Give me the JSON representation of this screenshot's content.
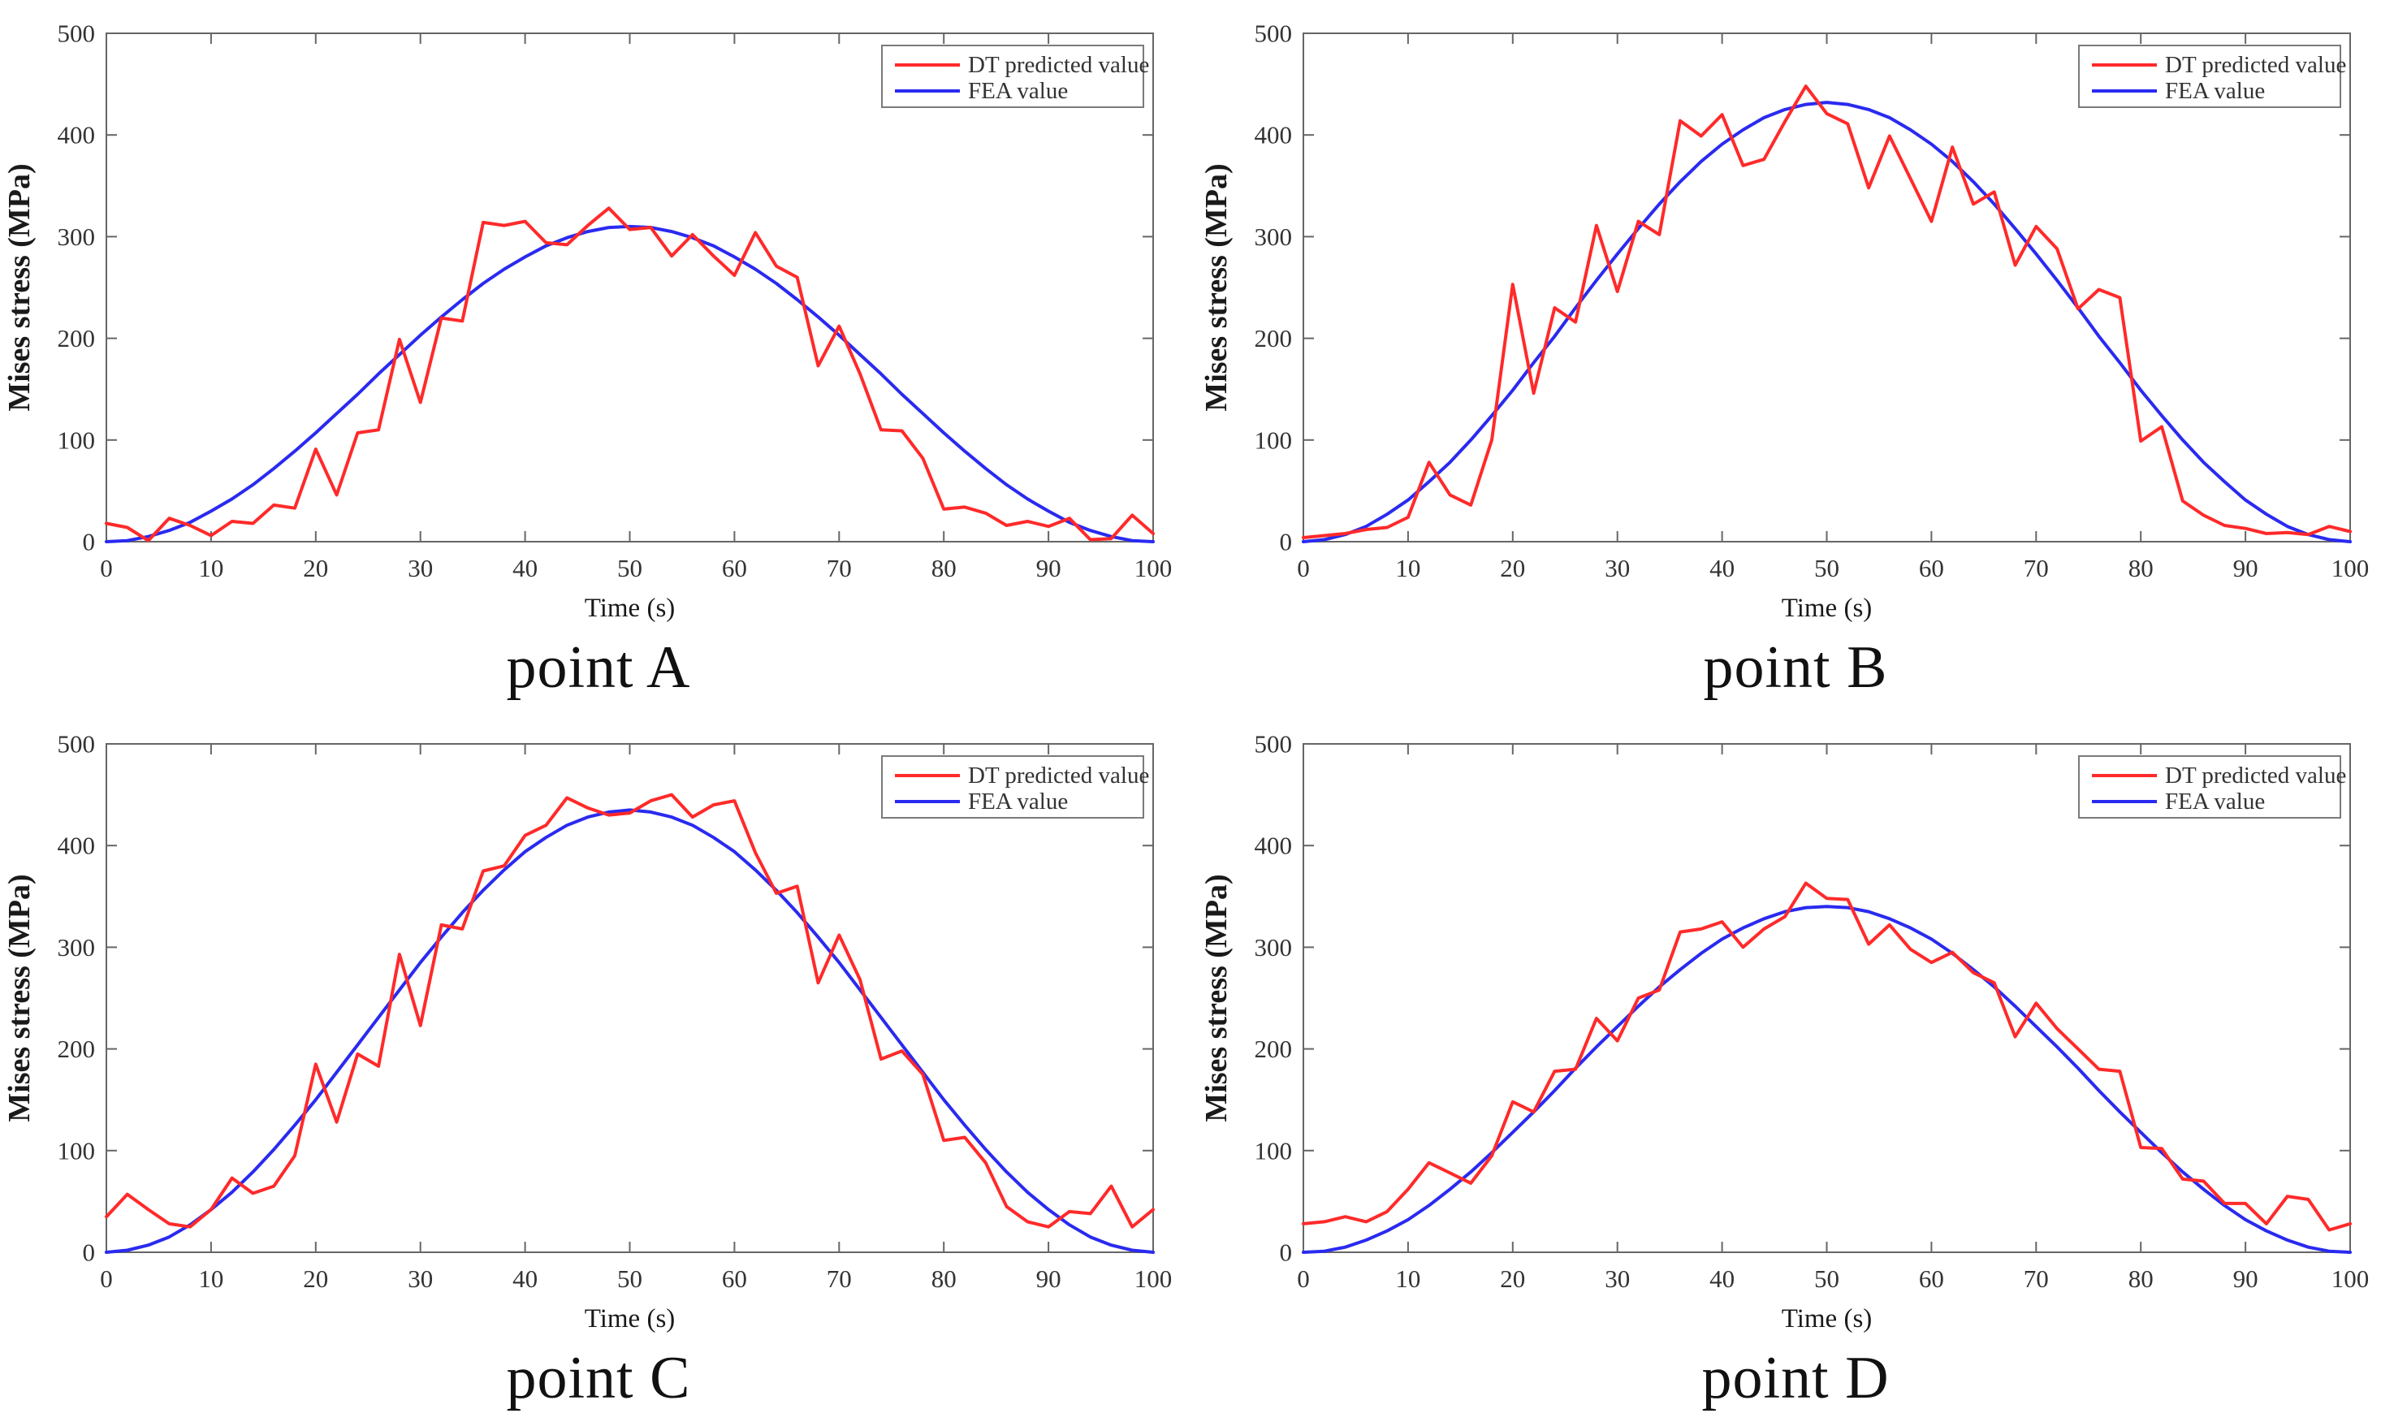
{
  "page": {
    "background": "#ffffff"
  },
  "styles": {
    "dt_color": "#ff2a2a",
    "fea_color": "#2a2af0",
    "frame_color": "#666666",
    "tick_text_color": "#333333",
    "label_text_color": "#1a1a1a",
    "legend_border_color": "#7a7a7a",
    "legend_background": "#ffffff"
  },
  "axes": {
    "xlabel": "Time (s)",
    "ylabel": "Mises stress (MPa)",
    "xlim": [
      0,
      100
    ],
    "ylim": [
      0,
      500
    ],
    "xticks": [
      0,
      10,
      20,
      30,
      40,
      50,
      60,
      70,
      80,
      90,
      100
    ],
    "yticks": [
      0,
      100,
      200,
      300,
      400,
      500
    ],
    "grid": false,
    "legend_position": "top-right"
  },
  "chart_data": [
    {
      "type": "line",
      "caption": "point A",
      "x": [
        0,
        2,
        4,
        6,
        8,
        10,
        12,
        14,
        16,
        18,
        20,
        22,
        24,
        26,
        28,
        30,
        32,
        34,
        36,
        38,
        40,
        42,
        44,
        46,
        48,
        50,
        52,
        54,
        56,
        58,
        60,
        62,
        64,
        66,
        68,
        70,
        72,
        74,
        76,
        78,
        80,
        82,
        84,
        86,
        88,
        90,
        92,
        94,
        96,
        98,
        100
      ],
      "series": [
        {
          "name": "DT predicted value",
          "color_key": "dt_color",
          "values": [
            18,
            14,
            1,
            23,
            16,
            6,
            20,
            18,
            36,
            33,
            91,
            46,
            107,
            110,
            199,
            137,
            220,
            217,
            314,
            311,
            315,
            294,
            292,
            311,
            328,
            307,
            309,
            281,
            302,
            281,
            262,
            304,
            271,
            260,
            173,
            212,
            165,
            110,
            109,
            82,
            32,
            34,
            28,
            16,
            20,
            15,
            23,
            2,
            3,
            26,
            8
          ]
        },
        {
          "name": "FEA value",
          "color_key": "fea_color",
          "values": [
            0,
            1,
            5,
            11,
            19,
            30,
            42,
            56,
            72,
            89,
            107,
            126,
            145,
            165,
            184,
            203,
            221,
            238,
            254,
            268,
            280,
            291,
            299,
            305,
            309,
            310,
            309,
            305,
            299,
            291,
            280,
            268,
            254,
            238,
            221,
            203,
            184,
            165,
            145,
            126,
            107,
            89,
            72,
            56,
            42,
            30,
            19,
            11,
            5,
            1,
            0
          ]
        }
      ]
    },
    {
      "type": "line",
      "caption": "point B",
      "x": [
        0,
        2,
        4,
        6,
        8,
        10,
        12,
        14,
        16,
        18,
        20,
        22,
        24,
        26,
        28,
        30,
        32,
        34,
        36,
        38,
        40,
        42,
        44,
        46,
        48,
        50,
        52,
        54,
        56,
        58,
        60,
        62,
        64,
        66,
        68,
        70,
        72,
        74,
        76,
        78,
        80,
        82,
        84,
        86,
        88,
        90,
        92,
        94,
        96,
        98,
        100
      ],
      "series": [
        {
          "name": "DT predicted value",
          "color_key": "dt_color",
          "values": [
            4,
            6,
            8,
            12,
            14,
            24,
            78,
            46,
            36,
            100,
            253,
            146,
            230,
            216,
            311,
            246,
            315,
            302,
            414,
            399,
            420,
            370,
            376,
            413,
            448,
            421,
            411,
            348,
            399,
            357,
            315,
            388,
            332,
            344,
            272,
            310,
            288,
            229,
            248,
            240,
            99,
            113,
            40,
            26,
            16,
            13,
            8,
            9,
            7,
            15,
            10
          ]
        },
        {
          "name": "FEA value",
          "color_key": "fea_color",
          "values": [
            0,
            2,
            7,
            15,
            27,
            41,
            59,
            78,
            100,
            124,
            149,
            176,
            202,
            230,
            257,
            283,
            308,
            332,
            354,
            374,
            391,
            405,
            417,
            425,
            430,
            432,
            430,
            425,
            417,
            405,
            391,
            374,
            354,
            332,
            308,
            283,
            257,
            230,
            202,
            176,
            149,
            124,
            100,
            78,
            59,
            41,
            27,
            15,
            7,
            2,
            0
          ]
        }
      ]
    },
    {
      "type": "line",
      "caption": "point C",
      "x": [
        0,
        2,
        4,
        6,
        8,
        10,
        12,
        14,
        16,
        18,
        20,
        22,
        24,
        26,
        28,
        30,
        32,
        34,
        36,
        38,
        40,
        42,
        44,
        46,
        48,
        50,
        52,
        54,
        56,
        58,
        60,
        62,
        64,
        66,
        68,
        70,
        72,
        74,
        76,
        78,
        80,
        82,
        84,
        86,
        88,
        90,
        92,
        94,
        96,
        98,
        100
      ],
      "series": [
        {
          "name": "DT predicted value",
          "color_key": "dt_color",
          "values": [
            35,
            57,
            42,
            28,
            25,
            42,
            73,
            58,
            65,
            95,
            185,
            128,
            195,
            183,
            293,
            223,
            322,
            318,
            375,
            380,
            410,
            420,
            447,
            437,
            430,
            432,
            444,
            450,
            428,
            440,
            444,
            393,
            353,
            360,
            265,
            312,
            268,
            190,
            198,
            175,
            110,
            113,
            88,
            45,
            30,
            25,
            40,
            38,
            65,
            25,
            42
          ]
        },
        {
          "name": "FEA value",
          "color_key": "fea_color",
          "values": [
            0,
            2,
            7,
            15,
            27,
            42,
            59,
            79,
            101,
            125,
            150,
            177,
            204,
            231,
            258,
            285,
            310,
            334,
            356,
            376,
            394,
            408,
            420,
            428,
            433,
            435,
            433,
            428,
            420,
            408,
            394,
            376,
            356,
            334,
            310,
            285,
            258,
            231,
            204,
            177,
            150,
            125,
            101,
            79,
            59,
            42,
            27,
            15,
            7,
            2,
            0
          ]
        }
      ]
    },
    {
      "type": "line",
      "caption": "point D",
      "x": [
        0,
        2,
        4,
        6,
        8,
        10,
        12,
        14,
        16,
        18,
        20,
        22,
        24,
        26,
        28,
        30,
        32,
        34,
        36,
        38,
        40,
        42,
        44,
        46,
        48,
        50,
        52,
        54,
        56,
        58,
        60,
        62,
        64,
        66,
        68,
        70,
        72,
        74,
        76,
        78,
        80,
        82,
        84,
        86,
        88,
        90,
        92,
        94,
        96,
        98,
        100
      ],
      "series": [
        {
          "name": "DT predicted value",
          "color_key": "dt_color",
          "values": [
            28,
            30,
            35,
            30,
            40,
            62,
            88,
            78,
            68,
            95,
            148,
            138,
            178,
            180,
            230,
            208,
            250,
            258,
            315,
            318,
            325,
            300,
            318,
            330,
            363,
            348,
            347,
            303,
            322,
            298,
            285,
            295,
            275,
            265,
            212,
            245,
            220,
            200,
            180,
            178,
            103,
            102,
            72,
            70,
            48,
            48,
            28,
            55,
            52,
            22,
            28
          ]
        },
        {
          "name": "FEA value",
          "color_key": "fea_color",
          "values": [
            0,
            1,
            5,
            12,
            21,
            32,
            46,
            62,
            79,
            98,
            118,
            138,
            159,
            181,
            202,
            222,
            242,
            261,
            278,
            294,
            308,
            319,
            328,
            335,
            339,
            340,
            339,
            335,
            328,
            319,
            308,
            294,
            278,
            261,
            242,
            222,
            202,
            181,
            159,
            138,
            118,
            98,
            79,
            62,
            46,
            32,
            21,
            12,
            5,
            1,
            0
          ]
        }
      ]
    }
  ]
}
